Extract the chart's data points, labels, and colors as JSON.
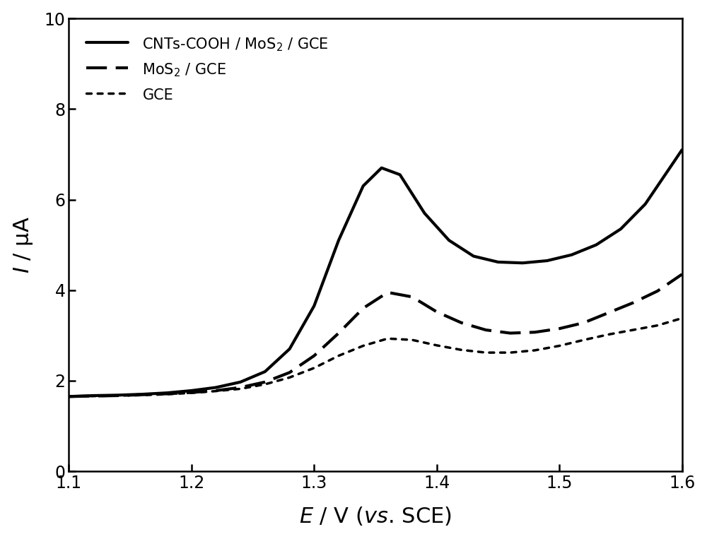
{
  "title": "",
  "xlim": [
    1.1,
    1.6
  ],
  "ylim": [
    0,
    10
  ],
  "xticks": [
    1.1,
    1.2,
    1.3,
    1.4,
    1.5,
    1.6
  ],
  "yticks": [
    0,
    2,
    4,
    6,
    8,
    10
  ],
  "background_color": "#ffffff",
  "line_color": "#000000",
  "legend_labels": [
    "CNTs-COOH / MoS$_2$ / GCE",
    "MoS$_2$ / GCE",
    "GCE"
  ],
  "line1_x": [
    1.1,
    1.12,
    1.14,
    1.16,
    1.18,
    1.2,
    1.22,
    1.24,
    1.26,
    1.28,
    1.3,
    1.32,
    1.34,
    1.355,
    1.37,
    1.39,
    1.41,
    1.43,
    1.45,
    1.47,
    1.49,
    1.51,
    1.53,
    1.55,
    1.57,
    1.6
  ],
  "line1_y": [
    1.65,
    1.67,
    1.68,
    1.7,
    1.73,
    1.78,
    1.85,
    1.97,
    2.2,
    2.7,
    3.65,
    5.1,
    6.3,
    6.7,
    6.55,
    5.7,
    5.1,
    4.75,
    4.62,
    4.6,
    4.65,
    4.78,
    5.0,
    5.35,
    5.9,
    7.1
  ],
  "line2_x": [
    1.1,
    1.12,
    1.14,
    1.16,
    1.18,
    1.2,
    1.22,
    1.24,
    1.26,
    1.28,
    1.3,
    1.32,
    1.34,
    1.36,
    1.38,
    1.4,
    1.42,
    1.44,
    1.46,
    1.48,
    1.5,
    1.52,
    1.54,
    1.56,
    1.58,
    1.6
  ],
  "line2_y": [
    1.65,
    1.66,
    1.67,
    1.69,
    1.71,
    1.74,
    1.78,
    1.85,
    1.97,
    2.18,
    2.55,
    3.05,
    3.6,
    3.95,
    3.85,
    3.52,
    3.28,
    3.12,
    3.05,
    3.07,
    3.15,
    3.28,
    3.5,
    3.72,
    3.98,
    4.35
  ],
  "line3_x": [
    1.1,
    1.12,
    1.14,
    1.16,
    1.18,
    1.2,
    1.22,
    1.24,
    1.26,
    1.28,
    1.3,
    1.32,
    1.34,
    1.36,
    1.38,
    1.4,
    1.42,
    1.44,
    1.46,
    1.48,
    1.5,
    1.52,
    1.54,
    1.56,
    1.58,
    1.6
  ],
  "line3_y": [
    1.65,
    1.66,
    1.67,
    1.68,
    1.7,
    1.73,
    1.77,
    1.82,
    1.92,
    2.07,
    2.28,
    2.55,
    2.77,
    2.93,
    2.9,
    2.78,
    2.68,
    2.62,
    2.62,
    2.67,
    2.77,
    2.9,
    3.02,
    3.12,
    3.22,
    3.38
  ],
  "linewidth_solid": 3.0,
  "linewidth_dashed": 3.0,
  "linewidth_dotted": 2.5,
  "fontsize_label": 22,
  "fontsize_tick": 17,
  "fontsize_legend": 15
}
